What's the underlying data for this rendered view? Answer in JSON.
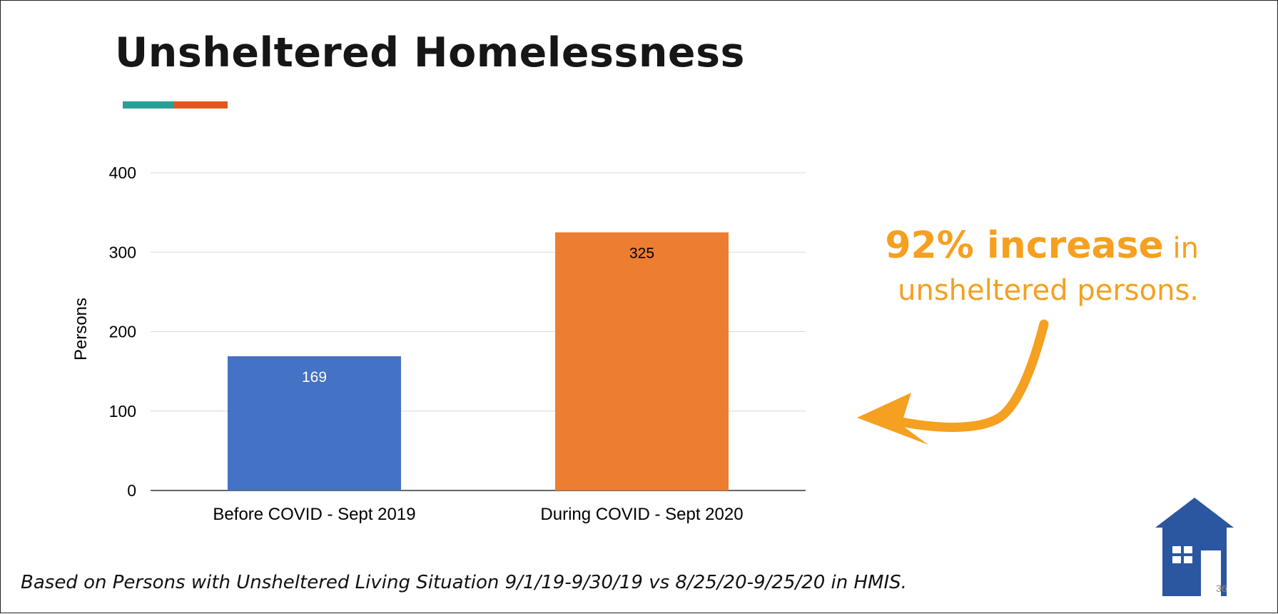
{
  "slide": {
    "title": "Unsheltered Homelessness",
    "page_number": "36",
    "footnote": "Based on Persons with Unsheltered Living Situation 9/1/19-9/30/19 vs 8/25/20-9/25/20 in HMIS."
  },
  "callout": {
    "highlight": "92% increase",
    "suffix": " in",
    "line2": "unsheltered persons."
  },
  "colors": {
    "title_bar_teal": "#2a9d97",
    "title_bar_orange": "#e2561e",
    "callout": "#f5a020",
    "logo": "#2b56a0"
  },
  "icons": [
    "house-logo-icon",
    "curved-arrow-icon"
  ],
  "chart_data": {
    "type": "bar",
    "title": "",
    "xlabel": "",
    "ylabel": "Persons",
    "categories": [
      "Before COVID - Sept 2019",
      "During COVID - Sept 2020"
    ],
    "values": [
      169,
      325
    ],
    "bar_colors": [
      "#4472c4",
      "#ed7d31"
    ],
    "data_labels": [
      "169",
      "325"
    ],
    "data_label_colors": [
      "#ffffff",
      "#000000"
    ],
    "ylim": [
      0,
      400
    ],
    "yticks": [
      0,
      100,
      200,
      300,
      400
    ],
    "grid": true,
    "legend": "none"
  }
}
